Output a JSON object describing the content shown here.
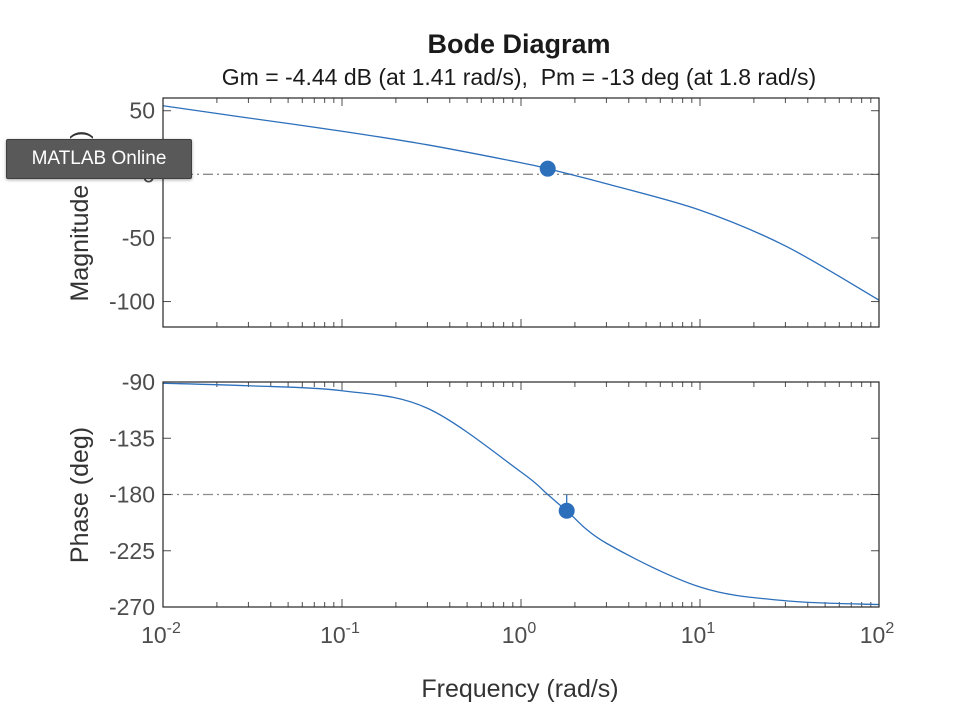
{
  "chart_data": [
    {
      "type": "line",
      "panel": "magnitude",
      "title": "Bode Diagram",
      "subtitle": "Gm = -4.44 dB (at 1.41 rad/s),  Pm = -13 deg (at 1.8 rad/s)",
      "ylabel": "Magnitude (dB)",
      "x_scale": "log",
      "xlim": [
        0.01,
        100
      ],
      "ylim": [
        -120,
        60
      ],
      "yticks": [
        "50",
        "0",
        "-50",
        "-100"
      ],
      "grid": false,
      "series": [
        {
          "x": [
            0.01,
            0.03,
            0.1,
            0.3,
            1,
            1.41,
            2,
            3,
            10,
            30,
            100
          ],
          "values": [
            53.9,
            44.3,
            33.9,
            23.2,
            9.1,
            4.4,
            -0.9,
            -7.4,
            -28.1,
            -56.3,
            -98.9
          ]
        }
      ],
      "reference_line": 0,
      "marker": {
        "x": 1.41,
        "y": 4.44
      },
      "color": "#2c6fbb"
    },
    {
      "type": "line",
      "panel": "phase",
      "ylabel": "Phase (deg)",
      "xlabel": "Frequency (rad/s)",
      "x_scale": "log",
      "xlim": [
        0.01,
        100
      ],
      "ylim": [
        -270,
        -90
      ],
      "yticks": [
        "-90",
        "-135",
        "-180",
        "-225",
        "-270"
      ],
      "xticks": [
        {
          "base": "10",
          "exp": "-2"
        },
        {
          "base": "10",
          "exp": "-1"
        },
        {
          "base": "10",
          "exp": "0"
        },
        {
          "base": "10",
          "exp": "1"
        },
        {
          "base": "10",
          "exp": "2"
        }
      ],
      "grid": false,
      "series": [
        {
          "x": [
            0.01,
            0.03,
            0.1,
            0.3,
            1,
            1.41,
            1.8,
            3,
            10,
            30,
            100
          ],
          "values": [
            -91,
            -93,
            -97,
            -111,
            -162,
            -180,
            -193,
            -219,
            -254,
            -265,
            -268
          ]
        }
      ],
      "reference_line": -180,
      "marker": {
        "x": 1.8,
        "y": -193
      },
      "color": "#2c6fbb"
    }
  ],
  "overlay": {
    "tooltip_text": "MATLAB Online"
  }
}
